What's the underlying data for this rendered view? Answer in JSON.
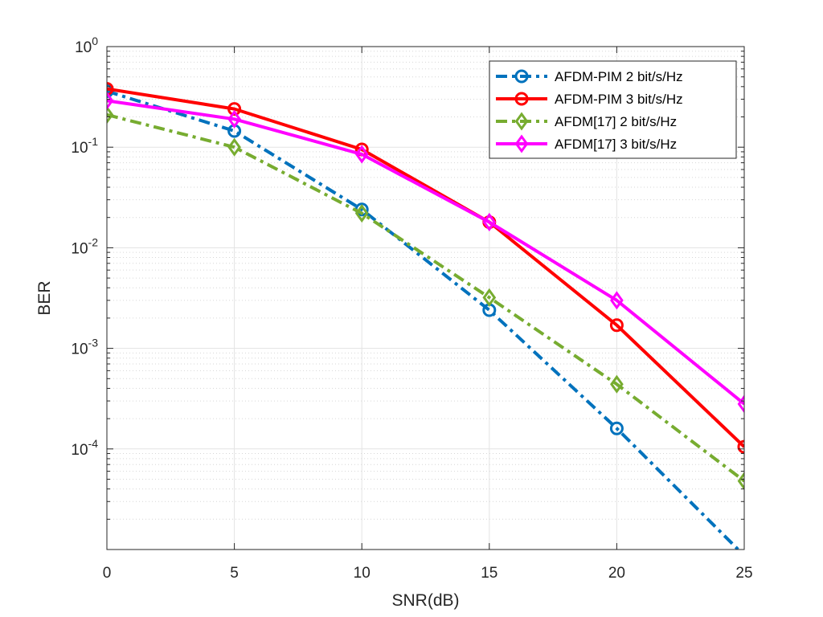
{
  "chart_data": {
    "type": "line",
    "title": "",
    "xlabel": "SNR(dB)",
    "ylabel": "BER",
    "y_scale": "log",
    "xlim": [
      0,
      25
    ],
    "ylim": [
      1e-05,
      1
    ],
    "grid": true,
    "minor_grid": true,
    "x_ticks": [
      0,
      5,
      10,
      15,
      20,
      25
    ],
    "x_tick_labels": [
      "0",
      "5",
      "10",
      "15",
      "20",
      "25"
    ],
    "y_ticks": [
      1,
      0.1,
      0.01,
      0.001,
      0.0001
    ],
    "y_tick_labels": [
      {
        "base": "10",
        "exp": "0"
      },
      {
        "base": "10",
        "exp": "-1"
      },
      {
        "base": "10",
        "exp": "-2"
      },
      {
        "base": "10",
        "exp": "-3"
      },
      {
        "base": "10",
        "exp": "-4"
      }
    ],
    "legend_position": "top-right",
    "series": [
      {
        "name": "AFDM-PIM 2 bit/s/Hz",
        "color": "#0072BD",
        "line_style": "dashdot",
        "marker": "circle",
        "x": [
          0,
          5,
          10,
          15,
          20,
          25
        ],
        "y": [
          0.36,
          0.145,
          0.024,
          0.0024,
          0.00016,
          8.7e-06
        ]
      },
      {
        "name": "AFDM-PIM 3 bit/s/Hz",
        "color": "#FF0000",
        "line_style": "solid",
        "marker": "circle",
        "x": [
          0,
          5,
          10,
          15,
          20,
          25
        ],
        "y": [
          0.38,
          0.24,
          0.095,
          0.018,
          0.0017,
          0.000105
        ]
      },
      {
        "name": "AFDM[17] 2 bit/s/Hz",
        "color": "#77AC30",
        "line_style": "dashdot",
        "marker": "diamond",
        "x": [
          0,
          5,
          10,
          15,
          20,
          25
        ],
        "y": [
          0.21,
          0.1,
          0.022,
          0.0032,
          0.00044,
          4.8e-05
        ]
      },
      {
        "name": "AFDM[17] 3 bit/s/Hz",
        "color": "#FF00FF",
        "line_style": "solid",
        "marker": "diamond",
        "x": [
          0,
          5,
          10,
          15,
          20,
          25
        ],
        "y": [
          0.29,
          0.19,
          0.085,
          0.018,
          0.003,
          0.00028
        ]
      }
    ]
  }
}
